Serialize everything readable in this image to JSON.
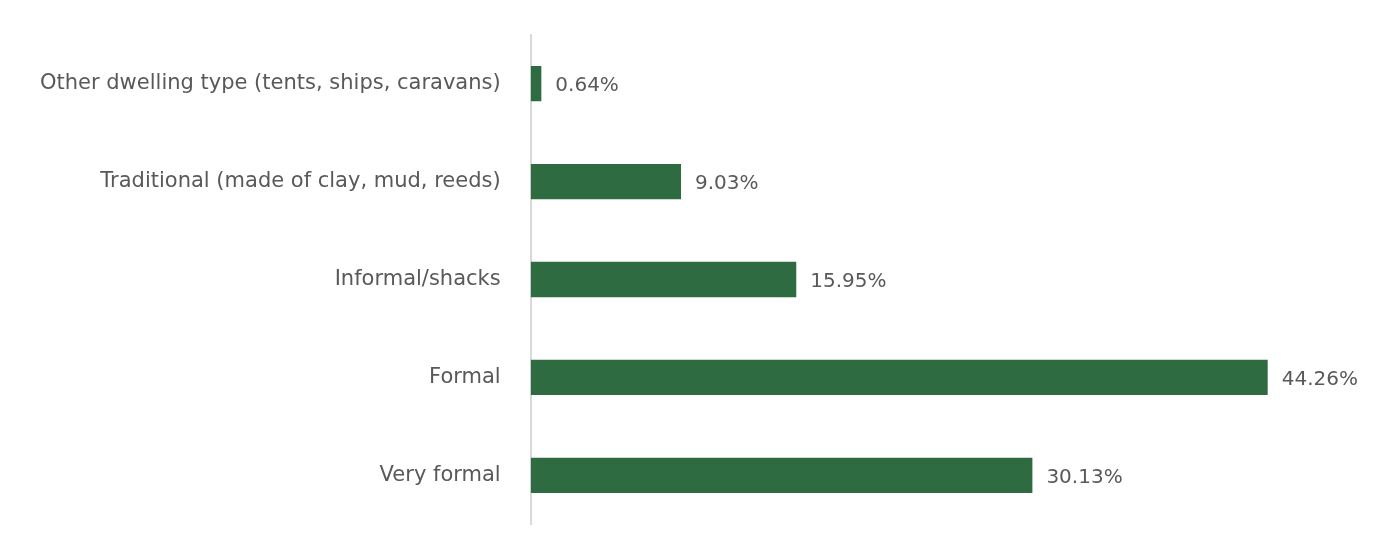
{
  "chart_data": {
    "type": "bar",
    "orientation": "horizontal",
    "categories": [
      "Other dwelling type (tents, ships, caravans)",
      "Traditional (made of clay, mud, reeds)",
      "Informal/shacks",
      "Formal",
      "Very formal"
    ],
    "values": [
      0.64,
      9.03,
      15.95,
      44.26,
      30.13
    ],
    "color": "#2e6b40",
    "data_labels": true,
    "value_labels": [
      "0.64%",
      "9.03%",
      "15.95%",
      "44.26%",
      "30.13%"
    ],
    "legend": false
  }
}
